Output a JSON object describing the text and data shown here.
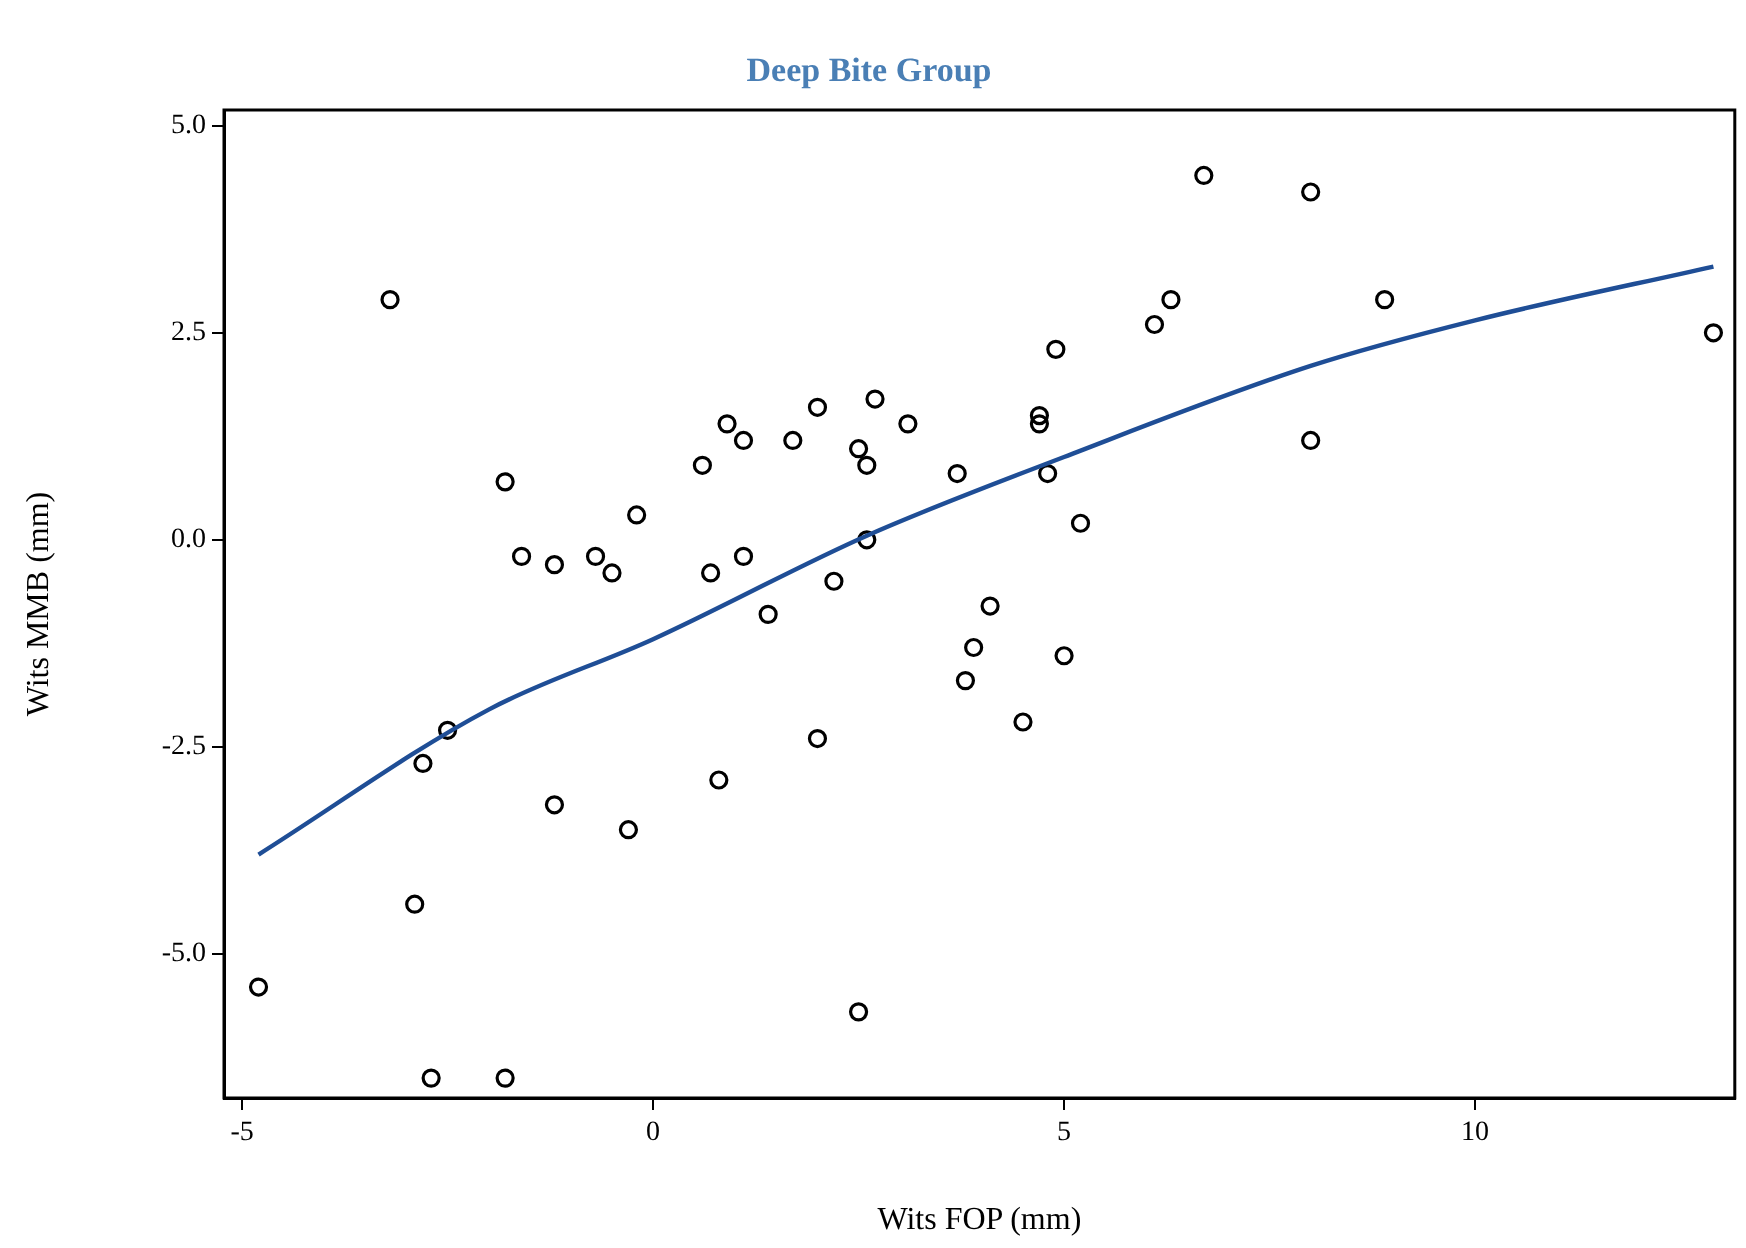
{
  "chart_data": {
    "type": "scatter",
    "title": "Deep Bite Group",
    "xlabel": "Wits FOP (mm)",
    "ylabel": "Wits MMB (mm)",
    "xlim": [
      -5.22,
      13.16
    ],
    "xticks": [
      -5,
      0,
      5,
      10
    ],
    "ylim": [
      -6.74,
      5.19
    ],
    "yticks": [
      {
        "value": -5,
        "label": "-5.0"
      },
      {
        "value": -2.5,
        "label": "-2.5"
      },
      {
        "value": 0,
        "label": "0.0"
      },
      {
        "value": 2.5,
        "label": "2.5"
      },
      {
        "value": 5,
        "label": "5.0"
      }
    ],
    "legend": false,
    "series": [
      {
        "marker": "circle",
        "color": "#000000",
        "x": [
          -3.2,
          -4.8,
          -2.9,
          -2.8,
          -2.5,
          -2.7,
          -1.8,
          -1.8,
          -1.6,
          -1.2,
          -1.2,
          -0.7,
          -0.5,
          -0.2,
          -0.3,
          0.6,
          0.7,
          0.8,
          0.9,
          1.1,
          1.1,
          1.4,
          1.7,
          2.0,
          2.0,
          2.2,
          2.5,
          2.6,
          2.6,
          2.7,
          2.5,
          3.1,
          3.7,
          3.8,
          3.9,
          4.1,
          4.5,
          4.7,
          4.7,
          4.8,
          4.9,
          5.0,
          5.2,
          6.1,
          6.3,
          6.7,
          8.0,
          8.0,
          8.9,
          12.9
        ],
        "values": [
          2.9,
          -5.4,
          -4.4,
          -2.7,
          -2.3,
          -6.5,
          -6.5,
          0.7,
          -0.2,
          -0.3,
          -3.2,
          -0.2,
          -0.4,
          0.3,
          -3.5,
          0.9,
          -0.4,
          -2.9,
          1.4,
          1.2,
          -0.2,
          -0.9,
          1.2,
          1.6,
          -2.4,
          -0.5,
          1.1,
          0.9,
          0.0,
          1.7,
          -5.7,
          1.4,
          0.8,
          -1.7,
          -1.3,
          -0.8,
          -2.2,
          1.5,
          1.4,
          0.8,
          2.3,
          -1.4,
          0.2,
          2.6,
          2.9,
          4.4,
          4.2,
          1.2,
          2.9,
          2.5
        ]
      },
      {
        "type": "line",
        "marker": "none",
        "line_style": "solid",
        "color": "#1f4e96",
        "x": [
          -4.8,
          -2,
          0,
          2.6,
          5,
          8,
          10,
          12.9
        ],
        "values": [
          -3.8,
          -2.05,
          -1.2,
          0.05,
          1.0,
          2.1,
          2.65,
          3.3
        ]
      }
    ]
  }
}
